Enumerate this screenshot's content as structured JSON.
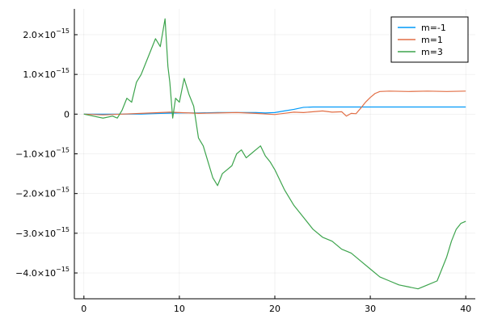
{
  "chart_data": {
    "type": "line",
    "title": "",
    "xlabel": "",
    "ylabel": "",
    "xlim": [
      -1,
      41
    ],
    "ylim": [
      -4.65e-15,
      2.65e-15
    ],
    "grid": true,
    "legend_position": "top-right",
    "x_ticks": [
      {
        "value": 0,
        "label": "0"
      },
      {
        "value": 10,
        "label": "10"
      },
      {
        "value": 20,
        "label": "20"
      },
      {
        "value": 30,
        "label": "30"
      },
      {
        "value": 40,
        "label": "40"
      }
    ],
    "y_ticks": [
      {
        "value": 2e-15,
        "label": "2.0×10",
        "exp": "−15"
      },
      {
        "value": 1e-15,
        "label": "1.0×10",
        "exp": "−15"
      },
      {
        "value": 0,
        "label": "0",
        "exp": ""
      },
      {
        "value": -1e-15,
        "label": "−1.0×10",
        "exp": "−15"
      },
      {
        "value": -2e-15,
        "label": "−2.0×10",
        "exp": "−15"
      },
      {
        "value": -3e-15,
        "label": "−3.0×10",
        "exp": "−15"
      },
      {
        "value": -4e-15,
        "label": "−4.0×10",
        "exp": "−15"
      }
    ],
    "series": [
      {
        "name": "m=-1",
        "color": "#009af9",
        "x": [
          0,
          2,
          4,
          6,
          8,
          10,
          12,
          14,
          16,
          18,
          19,
          20,
          21,
          22,
          23,
          24,
          26,
          28,
          30,
          32,
          34,
          36,
          38,
          40
        ],
        "y": [
          0,
          0,
          0,
          0,
          2e-17,
          3e-17,
          3e-17,
          4e-17,
          4e-17,
          4e-17,
          3e-17,
          4e-17,
          8e-17,
          1.2e-16,
          1.7e-16,
          1.8e-16,
          1.8e-16,
          1.8e-16,
          1.8e-16,
          1.8e-16,
          1.8e-16,
          1.8e-16,
          1.8e-16,
          1.8e-16
        ]
      },
      {
        "name": "m=1",
        "color": "#e26f46",
        "x": [
          0,
          2,
          4,
          6,
          8,
          9,
          10,
          12,
          14,
          16,
          18,
          20,
          21,
          22,
          23,
          24,
          25,
          26,
          27,
          27.5,
          28,
          28.5,
          29,
          29.5,
          30,
          30.5,
          31,
          32,
          34,
          36,
          38,
          40
        ],
        "y": [
          0,
          -2e-17,
          0,
          2e-17,
          4e-17,
          5e-17,
          4e-17,
          2e-17,
          3e-17,
          4e-17,
          2e-17,
          -1e-17,
          2e-17,
          5e-17,
          4e-17,
          6e-17,
          8e-17,
          5e-17,
          6e-17,
          -5e-17,
          2e-17,
          1e-17,
          1.5e-16,
          3e-16,
          4.2e-16,
          5.2e-16,
          5.7e-16,
          5.8e-16,
          5.7e-16,
          5.8e-16,
          5.7e-16,
          5.8e-16
        ]
      },
      {
        "name": "m=3",
        "color": "#3da44d",
        "x": [
          0,
          1,
          2,
          3,
          3.5,
          4,
          4.5,
          5,
          5.5,
          6,
          6.5,
          7,
          7.5,
          8,
          8.5,
          8.8,
          9,
          9.3,
          9.6,
          10,
          10.5,
          11,
          11.5,
          12,
          12.5,
          13,
          13.5,
          14,
          14.5,
          15,
          15.5,
          16,
          16.5,
          17,
          17.5,
          18,
          18.5,
          19,
          19.5,
          20,
          21,
          22,
          23,
          24,
          25,
          26,
          27,
          28,
          29,
          30,
          31,
          32,
          33,
          34,
          35,
          36,
          37,
          37.5,
          38,
          38.5,
          39,
          39.5,
          40
        ],
        "y": [
          0,
          -5e-17,
          -1e-16,
          -5e-17,
          -1e-16,
          1e-16,
          4e-16,
          3e-16,
          8e-16,
          1e-15,
          1.3e-15,
          1.6e-15,
          1.9e-15,
          1.7e-15,
          2.4e-15,
          1.2e-15,
          8e-16,
          -1e-16,
          4e-16,
          3e-16,
          9e-16,
          5e-16,
          2e-16,
          -6e-16,
          -8e-16,
          -1.2e-15,
          -1.6e-15,
          -1.8e-15,
          -1.5e-15,
          -1.4e-15,
          -1.3e-15,
          -1e-15,
          -9e-16,
          -1.1e-15,
          -1e-15,
          -9e-16,
          -8e-16,
          -1.05e-15,
          -1.2e-15,
          -1.4e-15,
          -1.9e-15,
          -2.3e-15,
          -2.6e-15,
          -2.9e-15,
          -3.1e-15,
          -3.2e-15,
          -3.4e-15,
          -3.5e-15,
          -3.7e-15,
          -3.9e-15,
          -4.1e-15,
          -4.2e-15,
          -4.3e-15,
          -4.35e-15,
          -4.4e-15,
          -4.3e-15,
          -4.2e-15,
          -3.9e-15,
          -3.6e-15,
          -3.2e-15,
          -2.9e-15,
          -2.75e-15,
          -2.7e-15
        ]
      }
    ]
  }
}
